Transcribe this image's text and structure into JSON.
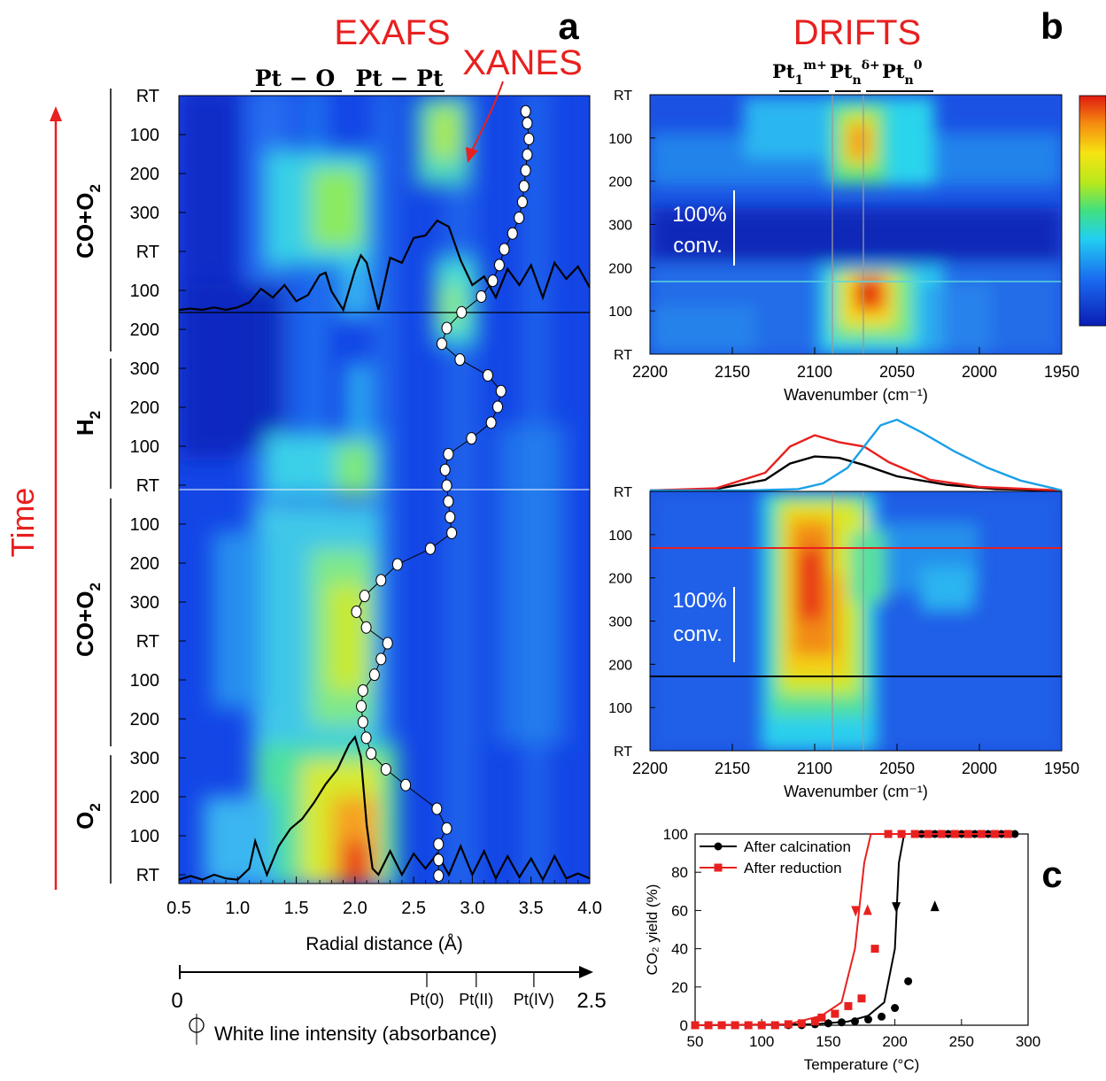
{
  "panel_letters": {
    "a": "a",
    "b": "b",
    "c": "c"
  },
  "headings": {
    "exafs": "EXAFS",
    "xanes": "XANES",
    "drifts": "DRIFTS",
    "time": "Time"
  },
  "colors": {
    "red": "#e8201f",
    "black": "#000000",
    "blue_curve": "#1aa0e8",
    "grey_line": "#9a9a9a",
    "cyan_line": "#58d4e0"
  },
  "chart_data": [
    {
      "id": "panel-a",
      "type": "heatmap",
      "title": "",
      "xlabel": "Radial distance (Å)",
      "xlim": [
        0.5,
        4.0
      ],
      "xticks": [
        "0.5",
        "1.0",
        "1.5",
        "2.0",
        "2.5",
        "3.0",
        "3.5",
        "4.0"
      ],
      "shell_labels": [
        "Pt − O",
        "Pt − Pt"
      ],
      "y_tick_labels": [
        "RT",
        "100",
        "200",
        "300",
        "200",
        "100",
        "RT",
        "300",
        "200",
        "100",
        "RT",
        "100",
        "200",
        "300",
        "200",
        "100",
        "RT",
        "300",
        "200",
        "100",
        "RT"
      ],
      "stages": [
        "CO+O2",
        "H2",
        "CO+O2",
        "O2"
      ],
      "xanes_axis": {
        "min_label": "0",
        "max_label": "2.5",
        "marks": [
          "Pt(0)",
          "Pt(II)",
          "Pt(IV)"
        ],
        "mark_values": [
          1.5,
          1.8,
          2.15
        ],
        "legend": "White line intensity (absorbance)"
      },
      "white_line_series": [
        {
          "t": 0.02,
          "v": 2.11
        },
        {
          "t": 0.035,
          "v": 2.12
        },
        {
          "t": 0.055,
          "v": 2.13
        },
        {
          "t": 0.075,
          "v": 2.12
        },
        {
          "t": 0.095,
          "v": 2.11
        },
        {
          "t": 0.115,
          "v": 2.1
        },
        {
          "t": 0.135,
          "v": 2.09
        },
        {
          "t": 0.155,
          "v": 2.07
        },
        {
          "t": 0.175,
          "v": 2.03
        },
        {
          "t": 0.195,
          "v": 1.98
        },
        {
          "t": 0.215,
          "v": 1.95
        },
        {
          "t": 0.235,
          "v": 1.91
        },
        {
          "t": 0.255,
          "v": 1.84
        },
        {
          "t": 0.275,
          "v": 1.72
        },
        {
          "t": 0.295,
          "v": 1.63
        },
        {
          "t": 0.315,
          "v": 1.6
        },
        {
          "t": 0.335,
          "v": 1.71
        },
        {
          "t": 0.355,
          "v": 1.88
        },
        {
          "t": 0.375,
          "v": 1.96
        },
        {
          "t": 0.395,
          "v": 1.94
        },
        {
          "t": 0.415,
          "v": 1.9
        },
        {
          "t": 0.435,
          "v": 1.78
        },
        {
          "t": 0.455,
          "v": 1.64
        },
        {
          "t": 0.475,
          "v": 1.62
        },
        {
          "t": 0.495,
          "v": 1.63
        },
        {
          "t": 0.515,
          "v": 1.64
        },
        {
          "t": 0.535,
          "v": 1.65
        },
        {
          "t": 0.555,
          "v": 1.66
        },
        {
          "t": 0.575,
          "v": 1.53
        },
        {
          "t": 0.595,
          "v": 1.33
        },
        {
          "t": 0.615,
          "v": 1.23
        },
        {
          "t": 0.635,
          "v": 1.13
        },
        {
          "t": 0.655,
          "v": 1.08
        },
        {
          "t": 0.675,
          "v": 1.14
        },
        {
          "t": 0.695,
          "v": 1.27
        },
        {
          "t": 0.715,
          "v": 1.23
        },
        {
          "t": 0.735,
          "v": 1.19
        },
        {
          "t": 0.755,
          "v": 1.12
        },
        {
          "t": 0.775,
          "v": 1.11
        },
        {
          "t": 0.795,
          "v": 1.12
        },
        {
          "t": 0.815,
          "v": 1.14
        },
        {
          "t": 0.835,
          "v": 1.17
        },
        {
          "t": 0.855,
          "v": 1.26
        },
        {
          "t": 0.875,
          "v": 1.38
        },
        {
          "t": 0.905,
          "v": 1.57
        },
        {
          "t": 0.93,
          "v": 1.63
        },
        {
          "t": 0.95,
          "v": 1.58
        },
        {
          "t": 0.97,
          "v": 1.58
        },
        {
          "t": 0.99,
          "v": 1.58
        }
      ],
      "ft_curve_bottom": [
        [
          0.5,
          0.01
        ],
        [
          0.6,
          0.04
        ],
        [
          0.7,
          0.01
        ],
        [
          0.8,
          0.05
        ],
        [
          0.9,
          0.02
        ],
        [
          1.0,
          0.01
        ],
        [
          1.1,
          0.1
        ],
        [
          1.15,
          0.32
        ],
        [
          1.25,
          0.05
        ],
        [
          1.35,
          0.28
        ],
        [
          1.45,
          0.42
        ],
        [
          1.55,
          0.5
        ],
        [
          1.65,
          0.63
        ],
        [
          1.75,
          0.78
        ],
        [
          1.85,
          0.9
        ],
        [
          1.95,
          1.1
        ],
        [
          2.0,
          1.16
        ],
        [
          2.05,
          1.0
        ],
        [
          2.1,
          0.45
        ],
        [
          2.15,
          0.1
        ],
        [
          2.2,
          0.05
        ],
        [
          2.3,
          0.24
        ],
        [
          2.4,
          0.05
        ],
        [
          2.5,
          0.22
        ],
        [
          2.6,
          0.1
        ],
        [
          2.7,
          0.22
        ],
        [
          2.8,
          0.05
        ],
        [
          2.9,
          0.28
        ],
        [
          3.0,
          0.05
        ],
        [
          3.1,
          0.24
        ],
        [
          3.2,
          0.02
        ],
        [
          3.3,
          0.2
        ],
        [
          3.4,
          0.03
        ],
        [
          3.5,
          0.18
        ],
        [
          3.6,
          0.01
        ],
        [
          3.7,
          0.2
        ],
        [
          3.8,
          0.02
        ],
        [
          3.9,
          0.06
        ],
        [
          4.0,
          0.02
        ]
      ],
      "ft_curve_top": [
        [
          0.5,
          0.0
        ],
        [
          0.6,
          0.01
        ],
        [
          0.7,
          0.0
        ],
        [
          0.8,
          0.02
        ],
        [
          0.9,
          0.0
        ],
        [
          1.0,
          0.02
        ],
        [
          1.1,
          0.06
        ],
        [
          1.2,
          0.17
        ],
        [
          1.3,
          0.1
        ],
        [
          1.4,
          0.2
        ],
        [
          1.5,
          0.07
        ],
        [
          1.6,
          0.12
        ],
        [
          1.7,
          0.28
        ],
        [
          1.75,
          0.3
        ],
        [
          1.8,
          0.15
        ],
        [
          1.9,
          0.0
        ],
        [
          2.0,
          0.32
        ],
        [
          2.05,
          0.44
        ],
        [
          2.1,
          0.38
        ],
        [
          2.2,
          0.0
        ],
        [
          2.3,
          0.42
        ],
        [
          2.4,
          0.38
        ],
        [
          2.5,
          0.58
        ],
        [
          2.6,
          0.6
        ],
        [
          2.7,
          0.72
        ],
        [
          2.8,
          0.67
        ],
        [
          2.9,
          0.4
        ],
        [
          3.0,
          0.2
        ],
        [
          3.1,
          0.27
        ],
        [
          3.2,
          0.1
        ],
        [
          3.3,
          0.33
        ],
        [
          3.4,
          0.2
        ],
        [
          3.5,
          0.36
        ],
        [
          3.6,
          0.1
        ],
        [
          3.7,
          0.38
        ],
        [
          3.8,
          0.25
        ],
        [
          3.9,
          0.35
        ],
        [
          4.0,
          0.18
        ]
      ]
    },
    {
      "id": "panel-b-top",
      "type": "heatmap",
      "xlabel": "Wavenumber (cm⁻¹)",
      "xlim": [
        2200,
        1950
      ],
      "xticks": [
        "2200",
        "2150",
        "2100",
        "2050",
        "2000",
        "1950"
      ],
      "y_tick_labels": [
        "RT",
        "100",
        "200",
        "300",
        "200",
        "100",
        "RT"
      ],
      "species_labels": [
        "Pt₁ᵐ⁺",
        "Ptₙ^δ⁺",
        "Ptₙ⁰"
      ],
      "annotation": [
        "100%",
        "conv."
      ]
    },
    {
      "id": "panel-b-bottom",
      "type": "heatmap",
      "xlabel": "Wavenumber (cm⁻¹)",
      "xlim": [
        2200,
        1950
      ],
      "xticks": [
        "2200",
        "2150",
        "2100",
        "2050",
        "2000",
        "1950"
      ],
      "y_tick_labels": [
        "RT",
        "100",
        "200",
        "300",
        "200",
        "100",
        "RT"
      ],
      "annotation": [
        "100%",
        "conv."
      ],
      "spectra": [
        {
          "color": "#000000",
          "points": [
            [
              2200,
              0
            ],
            [
              2160,
              0.02
            ],
            [
              2130,
              0.15
            ],
            [
              2115,
              0.38
            ],
            [
              2100,
              0.48
            ],
            [
              2085,
              0.46
            ],
            [
              2070,
              0.36
            ],
            [
              2050,
              0.2
            ],
            [
              2020,
              0.08
            ],
            [
              1990,
              0.02
            ],
            [
              1950,
              0
            ]
          ]
        },
        {
          "color": "#e8201f",
          "points": [
            [
              2200,
              0
            ],
            [
              2160,
              0.03
            ],
            [
              2130,
              0.25
            ],
            [
              2115,
              0.62
            ],
            [
              2100,
              0.78
            ],
            [
              2085,
              0.68
            ],
            [
              2070,
              0.62
            ],
            [
              2055,
              0.4
            ],
            [
              2030,
              0.15
            ],
            [
              2000,
              0.05
            ],
            [
              1950,
              0
            ]
          ]
        },
        {
          "color": "#1aa0e8",
          "points": [
            [
              2200,
              0
            ],
            [
              2140,
              0
            ],
            [
              2110,
              0.02
            ],
            [
              2095,
              0.1
            ],
            [
              2080,
              0.32
            ],
            [
              2070,
              0.62
            ],
            [
              2060,
              0.92
            ],
            [
              2050,
              1.0
            ],
            [
              2035,
              0.82
            ],
            [
              2015,
              0.55
            ],
            [
              1995,
              0.32
            ],
            [
              1975,
              0.14
            ],
            [
              1955,
              0.03
            ],
            [
              1950,
              0
            ]
          ]
        }
      ]
    },
    {
      "id": "panel-c",
      "type": "line",
      "xlabel": "Temperature (°C)",
      "ylabel": "CO₂ yield (%)",
      "xlim": [
        50,
        300
      ],
      "ylim": [
        0,
        100
      ],
      "xticks": [
        "50",
        "100",
        "150",
        "200",
        "250",
        "300"
      ],
      "yticks": [
        "0",
        "20",
        "40",
        "60",
        "80",
        "100"
      ],
      "series": [
        {
          "name": "After calcination",
          "color": "#000000",
          "marker": "circle",
          "x": [
            50,
            60,
            70,
            80,
            90,
            100,
            110,
            120,
            130,
            140,
            150,
            160,
            170,
            180,
            190,
            200,
            210,
            220,
            230,
            240,
            250,
            260,
            270,
            280,
            290
          ],
          "y": [
            0,
            0,
            0,
            0,
            0,
            0,
            0,
            0,
            0,
            0.5,
            1,
            1.5,
            2,
            3,
            4.5,
            9,
            23,
            100,
            100,
            100,
            100,
            100,
            100,
            100,
            100
          ],
          "curve": [
            [
              50,
              0
            ],
            [
              140,
              0.5
            ],
            [
              165,
              2
            ],
            [
              180,
              5
            ],
            [
              192,
              12
            ],
            [
              200,
              40
            ],
            [
              203,
              85
            ],
            [
              207,
              100
            ],
            [
              290,
              100
            ]
          ]
        },
        {
          "name": "After reduction",
          "color": "#e8201f",
          "marker": "square",
          "x": [
            50,
            60,
            70,
            80,
            90,
            100,
            110,
            120,
            130,
            140,
            145,
            155,
            165,
            175,
            185,
            195,
            205,
            215,
            225,
            235,
            245,
            255,
            265,
            275,
            285
          ],
          "y": [
            0,
            0,
            0,
            0,
            0,
            0,
            0,
            0.5,
            1,
            2,
            4,
            6,
            10,
            14,
            40,
            100,
            100,
            100,
            100,
            100,
            100,
            100,
            100,
            100,
            100
          ],
          "curve": [
            [
              50,
              0
            ],
            [
              120,
              0.5
            ],
            [
              145,
              5
            ],
            [
              160,
              12
            ],
            [
              170,
              40
            ],
            [
              177,
              85
            ],
            [
              182,
              100
            ],
            [
              285,
              100
            ]
          ]
        }
      ]
    }
  ]
}
